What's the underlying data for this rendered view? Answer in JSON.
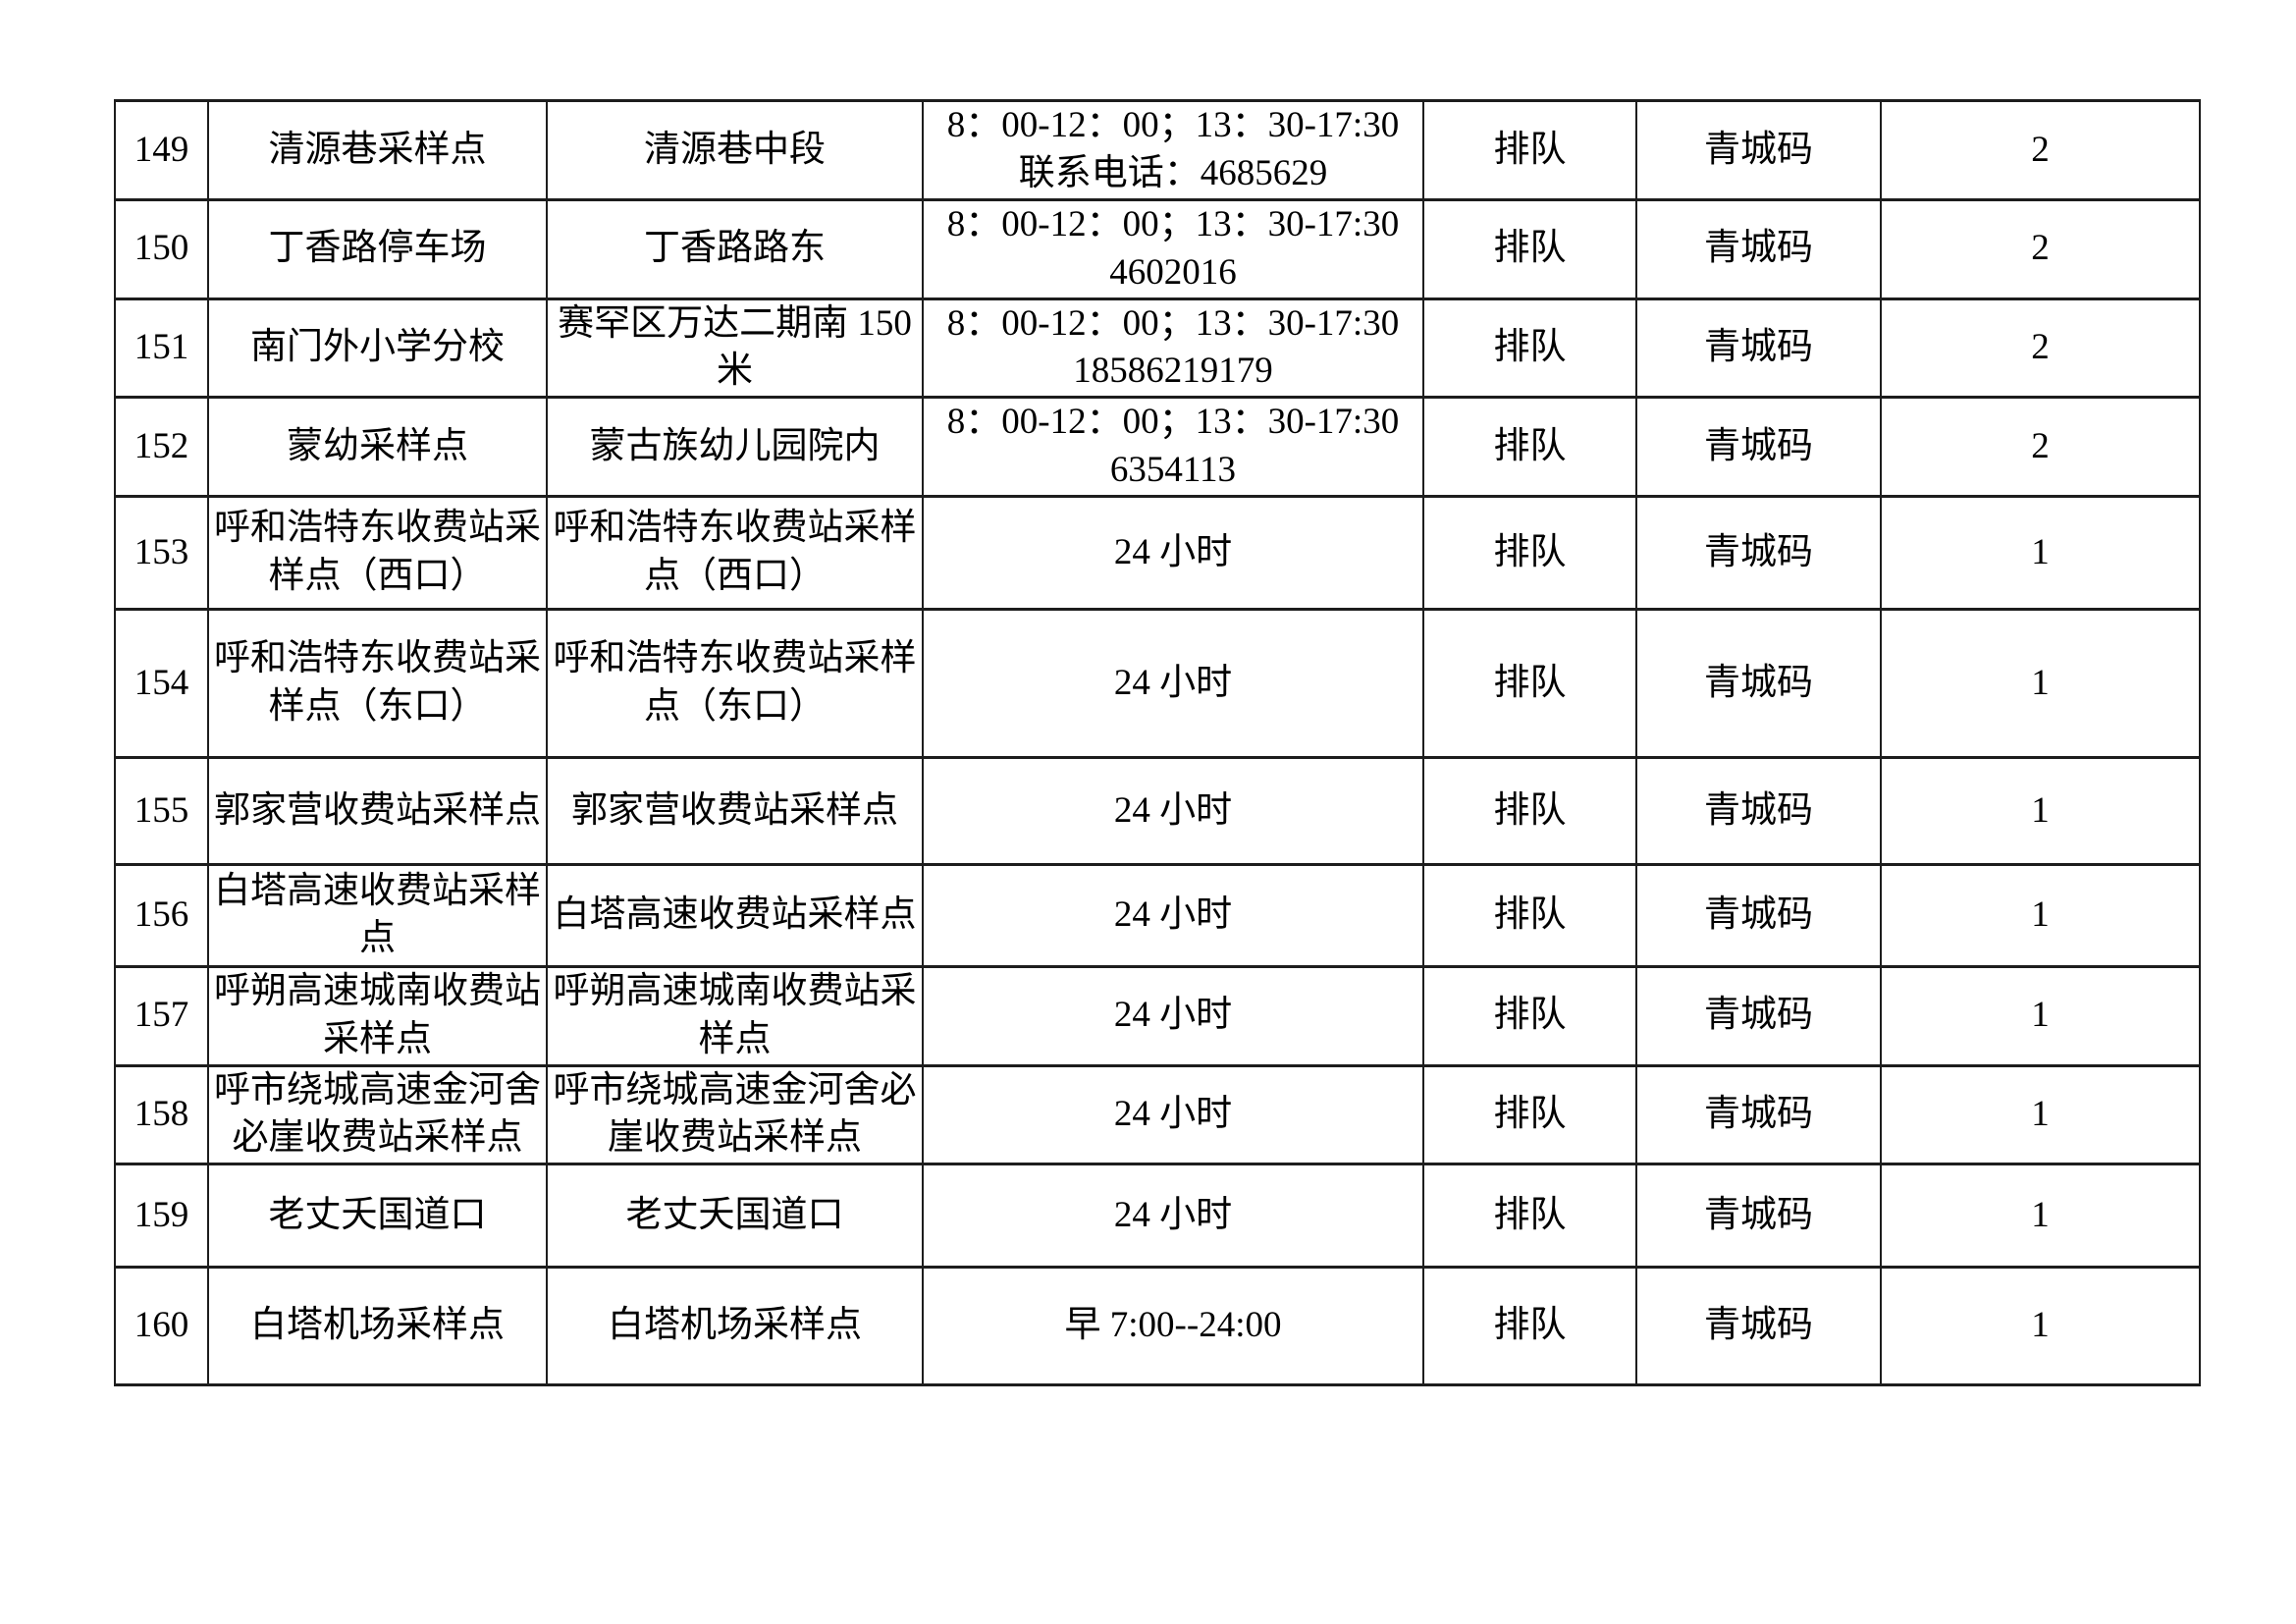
{
  "colors": {
    "border": "#1d1d1d",
    "text": "#000000",
    "background": "#ffffff"
  },
  "table": {
    "rows": [
      {
        "num": "149",
        "name": "清源巷采样点",
        "address": "清源巷中段",
        "hours": "8：00-12：00；13：30-17:30",
        "hours2": "联系电话：4685629",
        "queue": "排队",
        "code": "青城码",
        "count": "2"
      },
      {
        "num": "150",
        "name": "丁香路停车场",
        "address": "丁香路路东",
        "hours": "8：00-12：00；13：30-17:30",
        "hours2": "4602016",
        "queue": "排队",
        "code": "青城码",
        "count": "2"
      },
      {
        "num": "151",
        "name": "南门外小学分校",
        "address": "赛罕区万达二期南 150 米",
        "hours": "8：00-12：00；13：30-17:30",
        "hours2": "18586219179",
        "queue": "排队",
        "code": "青城码",
        "count": "2"
      },
      {
        "num": "152",
        "name": "蒙幼采样点",
        "address": "蒙古族幼儿园院内",
        "hours": "8：00-12：00；13：30-17:30",
        "hours2": "6354113",
        "queue": "排队",
        "code": "青城码",
        "count": "2"
      },
      {
        "num": "153",
        "name": "呼和浩特东收费站采样点（西口）",
        "address": "呼和浩特东收费站采样点（西口）",
        "hours": "24 小时",
        "hours2": "",
        "queue": "排队",
        "code": "青城码",
        "count": "1"
      },
      {
        "num": "154",
        "name": "呼和浩特东收费站采样点（东口）",
        "address": "呼和浩特东收费站采样点（东口）",
        "hours": "24 小时",
        "hours2": "",
        "queue": "排队",
        "code": "青城码",
        "count": "1"
      },
      {
        "num": "155",
        "name": "郭家营收费站采样点",
        "address": "郭家营收费站采样点",
        "hours": "24 小时",
        "hours2": "",
        "queue": "排队",
        "code": "青城码",
        "count": "1"
      },
      {
        "num": "156",
        "name": "白塔高速收费站采样点",
        "address": "白塔高速收费站采样点",
        "hours": "24 小时",
        "hours2": "",
        "queue": "排队",
        "code": "青城码",
        "count": "1"
      },
      {
        "num": "157",
        "name": "呼朔高速城南收费站采样点",
        "address": "呼朔高速城南收费站采样点",
        "hours": "24 小时",
        "hours2": "",
        "queue": "排队",
        "code": "青城码",
        "count": "1"
      },
      {
        "num": "158",
        "name": "呼市绕城高速金河舍必崖收费站采样点",
        "address": "呼市绕城高速金河舍必崖收费站采样点",
        "hours": "24 小时",
        "hours2": "",
        "queue": "排队",
        "code": "青城码",
        "count": "1"
      },
      {
        "num": "159",
        "name": "老丈夭国道口",
        "address": "老丈夭国道口",
        "hours": "24 小时",
        "hours2": "",
        "queue": "排队",
        "code": "青城码",
        "count": "1"
      },
      {
        "num": "160",
        "name": "白塔机场采样点",
        "address": "白塔机场采样点",
        "hours": "早 7:00--24:00",
        "hours2": "",
        "queue": "排队",
        "code": "青城码",
        "count": "1"
      }
    ]
  }
}
